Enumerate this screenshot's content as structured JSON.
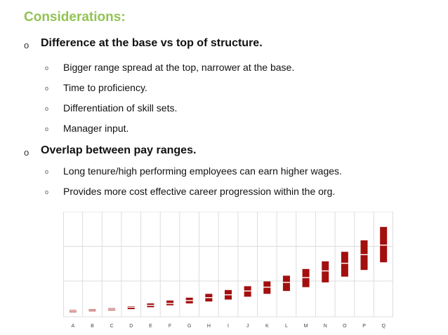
{
  "heading": "Considerations:",
  "bullet_marker": "o",
  "sections": [
    {
      "text": "Difference at the base vs top of structure.",
      "items": [
        "Bigger range spread at the top, narrower at the base.",
        "Time to proficiency.",
        "Differentiation of skill sets.",
        "Manager input."
      ]
    },
    {
      "text": "Overlap between pay ranges.",
      "items": [
        "Long tenure/high performing employees can earn higher wages.",
        "Provides more cost effective career progression within the org."
      ]
    }
  ],
  "colors": {
    "heading": "#92c353",
    "bar": "#a30f0f",
    "grid": "#dddddd"
  },
  "chart_data": {
    "type": "bar",
    "subtype": "floating-range",
    "categories": [
      "A",
      "B",
      "C",
      "D",
      "E",
      "F",
      "G",
      "H",
      "I",
      "J",
      "K",
      "L",
      "M",
      "N",
      "O",
      "P",
      "Q"
    ],
    "min": [
      5,
      6,
      7,
      8,
      10,
      12,
      14,
      16,
      18,
      21,
      24,
      27,
      31,
      36,
      42,
      49,
      57
    ],
    "mid": [
      6,
      7,
      8,
      10,
      12,
      14,
      17,
      20,
      23,
      27,
      31,
      36,
      41,
      48,
      56,
      65,
      75
    ],
    "max": [
      7,
      8,
      9,
      11,
      14,
      17,
      20,
      24,
      28,
      32,
      37,
      43,
      50,
      58,
      68,
      80,
      94
    ],
    "ylim": [
      0,
      110
    ],
    "y_tick_labels_shown": false,
    "grid": true
  }
}
